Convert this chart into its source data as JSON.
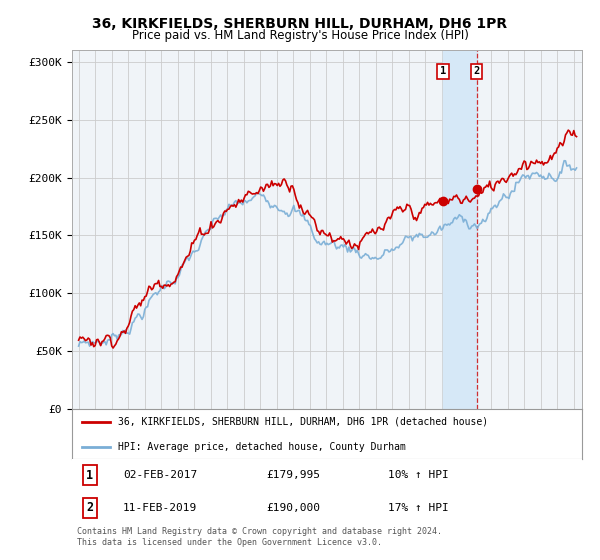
{
  "title": "36, KIRKFIELDS, SHERBURN HILL, DURHAM, DH6 1PR",
  "subtitle": "Price paid vs. HM Land Registry's House Price Index (HPI)",
  "ylabel_ticks": [
    "£0",
    "£50K",
    "£100K",
    "£150K",
    "£200K",
    "£250K",
    "£300K"
  ],
  "ytick_vals": [
    0,
    50000,
    100000,
    150000,
    200000,
    250000,
    300000
  ],
  "ylim": [
    0,
    310000
  ],
  "sale1_date": 2017.08,
  "sale1_price": 179995,
  "sale1_label": "1",
  "sale2_date": 2019.12,
  "sale2_price": 190000,
  "sale2_label": "2",
  "legend_line1": "36, KIRKFIELDS, SHERBURN HILL, DURHAM, DH6 1PR (detached house)",
  "legend_line2": "HPI: Average price, detached house, County Durham",
  "table_row1": [
    "1",
    "02-FEB-2017",
    "£179,995",
    "10% ↑ HPI"
  ],
  "table_row2": [
    "2",
    "11-FEB-2019",
    "£190,000",
    "17% ↑ HPI"
  ],
  "footer": "Contains HM Land Registry data © Crown copyright and database right 2024.\nThis data is licensed under the Open Government Licence v3.0.",
  "red_color": "#cc0000",
  "blue_color": "#7aaed6",
  "highlight_color": "#d6e8f7",
  "grid_color": "#cccccc",
  "bg_color": "#f0f4f8"
}
